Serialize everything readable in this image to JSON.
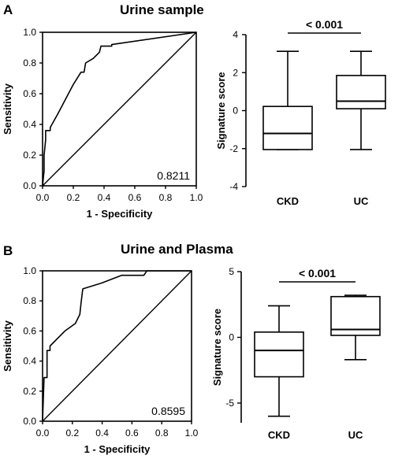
{
  "panels": [
    {
      "letter": "A",
      "title": "Urine sample",
      "roc": {
        "type": "line",
        "xlabel": "1 - Specificity",
        "ylabel": "Sensitivity",
        "xlim": [
          0,
          1
        ],
        "ylim": [
          0,
          1
        ],
        "xticks": [
          "0.0",
          "0.2",
          "0.4",
          "0.6",
          "0.8",
          "1.0"
        ],
        "yticks": [
          "0.0",
          "0.2",
          "0.4",
          "0.6",
          "0.8",
          "1.0"
        ],
        "auc_label": "0.8211",
        "curve": [
          [
            0,
            0
          ],
          [
            0.01,
            0.1
          ],
          [
            0.01,
            0.2
          ],
          [
            0.02,
            0.3
          ],
          [
            0.02,
            0.36
          ],
          [
            0.05,
            0.36
          ],
          [
            0.05,
            0.38
          ],
          [
            0.1,
            0.47
          ],
          [
            0.2,
            0.66
          ],
          [
            0.25,
            0.74
          ],
          [
            0.27,
            0.74
          ],
          [
            0.28,
            0.8
          ],
          [
            0.33,
            0.83
          ],
          [
            0.37,
            0.87
          ],
          [
            0.38,
            0.91
          ],
          [
            0.45,
            0.91
          ],
          [
            0.45,
            0.92
          ],
          [
            1,
            1
          ]
        ],
        "reference_line": [
          [
            0,
            0
          ],
          [
            1,
            1
          ]
        ]
      },
      "box": {
        "type": "box",
        "ylabel": "Signature score",
        "ylim": [
          -4,
          4
        ],
        "yticks": [
          "-4",
          "-2",
          "0",
          "2",
          "4"
        ],
        "ytick_values": [
          -4,
          -2,
          0,
          2,
          4
        ],
        "categories": [
          "CKD",
          "UC"
        ],
        "boxes": [
          {
            "min": -2.05,
            "q1": -2.05,
            "median": -1.2,
            "q3": 0.22,
            "max": 3.12
          },
          {
            "min": -2.05,
            "q1": 0.1,
            "median": 0.5,
            "q3": 1.85,
            "max": 3.12
          }
        ],
        "significance": "< 0.001"
      }
    },
    {
      "letter": "B",
      "title": "Urine and Plasma",
      "roc": {
        "type": "line",
        "xlabel": "1 - Specificity",
        "ylabel": "Sensitivity",
        "xlim": [
          0,
          1
        ],
        "ylim": [
          0,
          1
        ],
        "xticks": [
          "0.0",
          "0.2",
          "0.4",
          "0.6",
          "0.8",
          "1.0"
        ],
        "yticks": [
          "0.0",
          "0.2",
          "0.4",
          "0.6",
          "0.8",
          "1.0"
        ],
        "auc_label": "0.8595",
        "curve": [
          [
            0,
            0
          ],
          [
            0.01,
            0.29
          ],
          [
            0.03,
            0.29
          ],
          [
            0.03,
            0.47
          ],
          [
            0.05,
            0.47
          ],
          [
            0.05,
            0.5
          ],
          [
            0.1,
            0.55
          ],
          [
            0.15,
            0.6
          ],
          [
            0.22,
            0.65
          ],
          [
            0.25,
            0.71
          ],
          [
            0.26,
            0.8
          ],
          [
            0.27,
            0.88
          ],
          [
            0.4,
            0.92
          ],
          [
            0.53,
            0.97
          ],
          [
            0.68,
            0.97
          ],
          [
            0.7,
            1.0
          ],
          [
            1,
            1
          ]
        ],
        "reference_line": [
          [
            0,
            0
          ],
          [
            1,
            1
          ]
        ]
      },
      "box": {
        "type": "box",
        "ylabel": "Signature score",
        "ylim": [
          -6.5,
          5
        ],
        "yticks": [
          "-5",
          "0",
          "5"
        ],
        "ytick_values": [
          -5,
          0,
          5
        ],
        "categories": [
          "CKD",
          "UC"
        ],
        "boxes": [
          {
            "min": -6.0,
            "q1": -3.0,
            "median": -1.0,
            "q3": 0.4,
            "max": 2.4
          },
          {
            "min": -1.7,
            "q1": 0.15,
            "median": 0.6,
            "q3": 3.1,
            "max": 3.2
          }
        ],
        "significance": "< 0.001"
      }
    }
  ],
  "chart_data": [
    {
      "type": "line",
      "title": "Urine sample",
      "xlabel": "1 - Specificity",
      "ylabel": "Sensitivity",
      "xlim": [
        0,
        1
      ],
      "ylim": [
        0,
        1
      ],
      "annotation": "0.8211",
      "series": [
        {
          "x": [
            0,
            0.01,
            0.01,
            0.02,
            0.02,
            0.05,
            0.05,
            0.1,
            0.2,
            0.25,
            0.27,
            0.28,
            0.33,
            0.37,
            0.38,
            0.45,
            0.45,
            1
          ],
          "y": [
            0,
            0.1,
            0.2,
            0.3,
            0.36,
            0.36,
            0.38,
            0.47,
            0.66,
            0.74,
            0.74,
            0.8,
            0.83,
            0.87,
            0.91,
            0.91,
            0.92,
            1
          ]
        },
        {
          "x": [
            0,
            1
          ],
          "y": [
            0,
            1
          ]
        }
      ]
    },
    {
      "type": "box",
      "ylabel": "Signature score",
      "ylim": [
        -4,
        4
      ],
      "categories": [
        "CKD",
        "UC"
      ],
      "min": [
        -2.05,
        -2.05
      ],
      "q1": [
        -2.05,
        0.1
      ],
      "median": [
        -1.2,
        0.5
      ],
      "q3": [
        0.22,
        1.85
      ],
      "max": [
        3.12,
        3.12
      ],
      "annotation": "< 0.001"
    },
    {
      "type": "line",
      "title": "Urine and Plasma",
      "xlabel": "1 - Specificity",
      "ylabel": "Sensitivity",
      "xlim": [
        0,
        1
      ],
      "ylim": [
        0,
        1
      ],
      "annotation": "0.8595",
      "series": [
        {
          "x": [
            0,
            0.01,
            0.03,
            0.03,
            0.05,
            0.05,
            0.1,
            0.15,
            0.22,
            0.25,
            0.26,
            0.27,
            0.4,
            0.53,
            0.68,
            0.7,
            1
          ],
          "y": [
            0,
            0.29,
            0.29,
            0.47,
            0.47,
            0.5,
            0.55,
            0.6,
            0.65,
            0.71,
            0.8,
            0.88,
            0.92,
            0.97,
            0.97,
            1.0,
            1
          ]
        },
        {
          "x": [
            0,
            1
          ],
          "y": [
            0,
            1
          ]
        }
      ]
    },
    {
      "type": "box",
      "ylabel": "Signature score",
      "ylim": [
        -6.5,
        5
      ],
      "categories": [
        "CKD",
        "UC"
      ],
      "min": [
        -6.0,
        -1.7
      ],
      "q1": [
        -3.0,
        0.15
      ],
      "median": [
        -1.0,
        0.6
      ],
      "q3": [
        0.4,
        3.1
      ],
      "max": [
        2.4,
        3.2
      ],
      "annotation": "< 0.001"
    }
  ]
}
